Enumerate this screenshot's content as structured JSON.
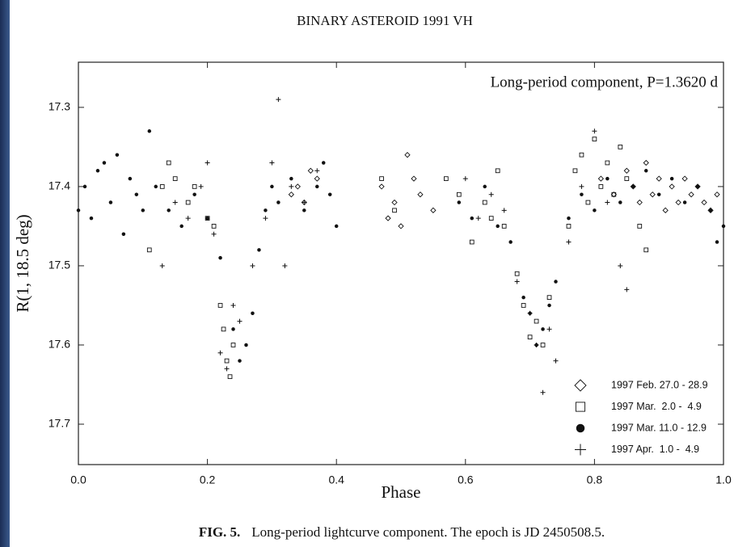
{
  "chart_data": {
    "type": "scatter",
    "title": "BINARY ASTEROID 1991 VH",
    "annotation": "Long-period component, P=1.3620 d",
    "x_label": "Phase",
    "y_label": "R(1, 18.5 deg)",
    "caption_label": "FIG. 5.",
    "caption_text": "Long-period lightcurve component. The epoch is JD 2450508.5.",
    "xlim": [
      0,
      1
    ],
    "ylim": [
      17.751,
      17.243
    ],
    "xticks": [
      {
        "value": 0,
        "label": "0.0"
      },
      0.2,
      0.4,
      0.6,
      0.8,
      {
        "value": 1,
        "label": "1.0"
      }
    ],
    "yticks": [
      17.3,
      17.4,
      17.5,
      17.6,
      17.7
    ],
    "legend": "lower right",
    "series": [
      {
        "name": "1997 Feb. 27.0 - 28.9",
        "marker": "diamond",
        "color": "#111111",
        "x": [
          0.33,
          0.34,
          0.35,
          0.36,
          0.37,
          0.47,
          0.48,
          0.49,
          0.5,
          0.51,
          0.52,
          0.53,
          0.55,
          0.81,
          0.83,
          0.85,
          0.86,
          0.87,
          0.88,
          0.89,
          0.9,
          0.91,
          0.92,
          0.93,
          0.94,
          0.95,
          0.96,
          0.97,
          0.98,
          0.99
        ],
        "values": [
          17.41,
          17.4,
          17.42,
          17.38,
          17.39,
          17.4,
          17.44,
          17.42,
          17.45,
          17.36,
          17.39,
          17.41,
          17.43,
          17.39,
          17.41,
          17.38,
          17.4,
          17.42,
          17.37,
          17.41,
          17.39,
          17.43,
          17.4,
          17.42,
          17.39,
          17.41,
          17.4,
          17.42,
          17.43,
          17.41
        ]
      },
      {
        "name": "1997 Mar.  2.0 -  4.9",
        "marker": "square",
        "color": "#111111",
        "x": [
          0.11,
          0.13,
          0.14,
          0.15,
          0.17,
          0.18,
          0.2,
          0.21,
          0.22,
          0.225,
          0.23,
          0.235,
          0.24,
          0.47,
          0.49,
          0.57,
          0.59,
          0.61,
          0.63,
          0.64,
          0.65,
          0.66,
          0.68,
          0.69,
          0.7,
          0.71,
          0.72,
          0.73,
          0.76,
          0.77,
          0.78,
          0.79,
          0.8,
          0.81,
          0.82,
          0.83,
          0.84,
          0.85,
          0.87,
          0.88
        ],
        "values": [
          17.48,
          17.4,
          17.37,
          17.39,
          17.42,
          17.4,
          17.44,
          17.45,
          17.55,
          17.58,
          17.62,
          17.64,
          17.6,
          17.39,
          17.43,
          17.39,
          17.41,
          17.47,
          17.42,
          17.44,
          17.38,
          17.45,
          17.51,
          17.55,
          17.59,
          17.57,
          17.6,
          17.54,
          17.45,
          17.38,
          17.36,
          17.42,
          17.34,
          17.4,
          17.37,
          17.41,
          17.35,
          17.39,
          17.45,
          17.48
        ]
      },
      {
        "name": "1997 Mar. 11.0 - 12.9",
        "marker": "circle",
        "color": "#111111",
        "x": [
          0.0,
          0.01,
          0.02,
          0.03,
          0.04,
          0.05,
          0.06,
          0.07,
          0.08,
          0.09,
          0.1,
          0.11,
          0.12,
          0.14,
          0.16,
          0.18,
          0.2,
          0.22,
          0.24,
          0.25,
          0.26,
          0.27,
          0.28,
          0.29,
          0.3,
          0.31,
          0.33,
          0.35,
          0.37,
          0.38,
          0.39,
          0.4,
          0.59,
          0.61,
          0.63,
          0.65,
          0.67,
          0.69,
          0.7,
          0.71,
          0.72,
          0.73,
          0.74,
          0.76,
          0.78,
          0.8,
          0.82,
          0.84,
          0.86,
          0.88,
          0.9,
          0.92,
          0.94,
          0.96,
          0.98,
          0.99,
          1.0
        ],
        "values": [
          17.43,
          17.4,
          17.44,
          17.38,
          17.37,
          17.42,
          17.36,
          17.46,
          17.39,
          17.41,
          17.43,
          17.33,
          17.4,
          17.43,
          17.45,
          17.41,
          17.44,
          17.49,
          17.58,
          17.62,
          17.6,
          17.56,
          17.48,
          17.43,
          17.4,
          17.42,
          17.39,
          17.43,
          17.4,
          17.37,
          17.41,
          17.45,
          17.42,
          17.44,
          17.4,
          17.45,
          17.47,
          17.54,
          17.56,
          17.6,
          17.58,
          17.55,
          17.52,
          17.44,
          17.41,
          17.43,
          17.39,
          17.42,
          17.4,
          17.38,
          17.41,
          17.39,
          17.42,
          17.4,
          17.43,
          17.47,
          17.45
        ]
      },
      {
        "name": "1997 Apr.  1.0 -  4.9",
        "marker": "plus",
        "color": "#111111",
        "x": [
          0.13,
          0.15,
          0.17,
          0.19,
          0.2,
          0.21,
          0.22,
          0.23,
          0.24,
          0.25,
          0.27,
          0.29,
          0.3,
          0.31,
          0.32,
          0.33,
          0.35,
          0.37,
          0.6,
          0.62,
          0.64,
          0.66,
          0.68,
          0.7,
          0.71,
          0.72,
          0.73,
          0.74,
          0.76,
          0.78,
          0.8,
          0.82,
          0.84,
          0.85
        ],
        "values": [
          17.5,
          17.42,
          17.44,
          17.4,
          17.37,
          17.46,
          17.61,
          17.63,
          17.55,
          17.57,
          17.5,
          17.44,
          17.37,
          17.29,
          17.5,
          17.4,
          17.42,
          17.38,
          17.39,
          17.44,
          17.41,
          17.43,
          17.52,
          17.56,
          17.6,
          17.66,
          17.58,
          17.62,
          17.47,
          17.4,
          17.33,
          17.42,
          17.5,
          17.53
        ]
      }
    ]
  }
}
